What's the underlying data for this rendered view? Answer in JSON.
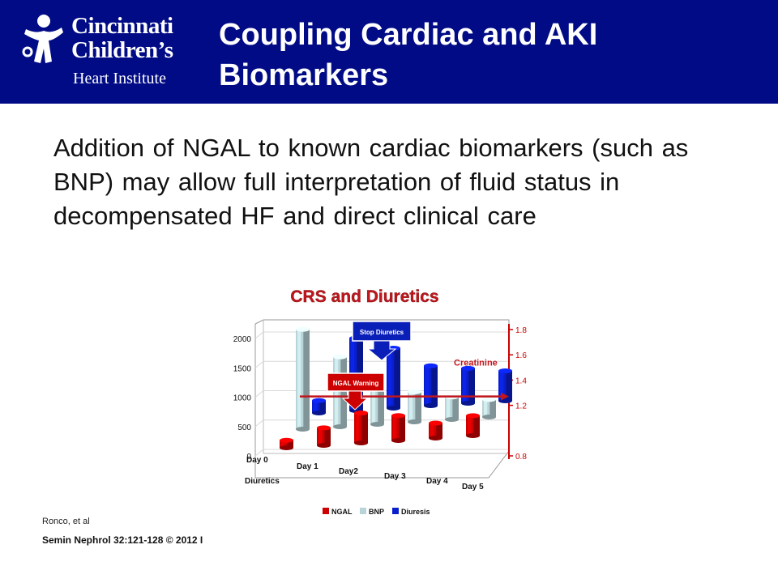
{
  "header": {
    "logo": {
      "line1": "Cincinnati",
      "line2": "Children’s",
      "line3": "Heart Institute"
    },
    "title_line1": "Coupling Cardiac and AKI",
    "title_line2": "Biomarkers",
    "background_color": "#000b85"
  },
  "body": {
    "text": "Addition of NGAL to known cardiac biomarkers (such as BNP) may allow full interpretation of fluid status in decompensated HF and direct clinical care"
  },
  "chart_data": {
    "type": "bar",
    "title": "CRS and Diuretics",
    "categories": [
      "Day 0",
      "Day 1",
      "Day2",
      "Day 3",
      "Day 4",
      "Day 5"
    ],
    "x_axis_extra_label": "Diuretics",
    "series": [
      {
        "name": "NGAL",
        "values": [
          150,
          350,
          600,
          500,
          300,
          400
        ],
        "color": "#cc0000"
      },
      {
        "name": "BNP",
        "values": [
          2000,
          1400,
          800,
          600,
          450,
          350
        ],
        "color": "#b8d4d8"
      },
      {
        "name": "Diuresis",
        "values": [
          250,
          1450,
          1200,
          800,
          700,
          600
        ],
        "color": "#0a1fcc"
      }
    ],
    "y_left": {
      "ticks": [
        "0",
        "500",
        "1000",
        "1500",
        "2000"
      ],
      "range": [
        0,
        2000
      ]
    },
    "y_right": {
      "ticks": [
        "0.8",
        "1.2",
        "1.4",
        "1.6",
        "1.8"
      ],
      "range": [
        0.8,
        1.8
      ],
      "color": "#cc0000"
    },
    "creatinine": {
      "label": "Creatinine",
      "level": 1.27
    },
    "annotations": [
      {
        "text": "Stop Diuretics",
        "points_to": "Day 3",
        "series": "Diuresis"
      },
      {
        "text": "NGAL Warning",
        "points_to": "Day2",
        "series": "NGAL"
      }
    ],
    "legend_position": "bottom",
    "grid": true
  },
  "citations": {
    "author": "Ronco, et al",
    "journal": "Semin Nephrol 32:121-128 © 2012 I"
  }
}
